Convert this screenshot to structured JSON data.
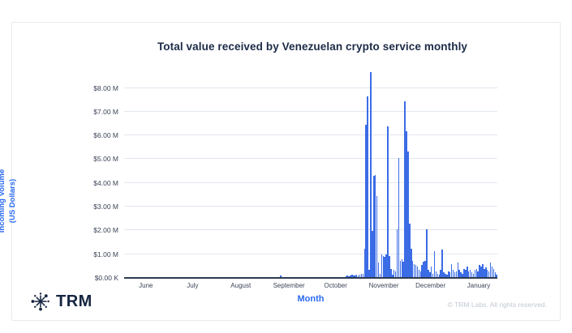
{
  "colors": {
    "bar": "#3B6CE6",
    "accent_blue": "#2A6AEF",
    "title": "#1C2B47",
    "tick_text": "#3C4458",
    "gridline": "#E2E6EE",
    "axis_line": "#2E3A50",
    "card_border": "#E8EAED",
    "muted_text": "#C2C8D2",
    "logo_navy": "#152440"
  },
  "footer": {
    "brand": "TRM",
    "brand_icon": "trm-starburst-icon",
    "copyright": "© TRM Labs. All rights reserved."
  },
  "chart_data": {
    "type": "bar",
    "title": "Total value received by Venezuelan crypto service monthly",
    "xlabel": "Month",
    "ylabel_line1": "Incoming Volume",
    "ylabel_line2": "(US Dollars)",
    "unit": "millions of US dollars per day",
    "grid": true,
    "legend": "none",
    "ylim": [
      0,
      8.77
    ],
    "yticks": [
      {
        "v": 0,
        "label": "$0.00 K"
      },
      {
        "v": 1,
        "label": "$1.00 M"
      },
      {
        "v": 2,
        "label": "$2.00 M"
      },
      {
        "v": 3,
        "label": "$3.00 M"
      },
      {
        "v": 4,
        "label": "$4.00 M"
      },
      {
        "v": 5,
        "label": "$5.00 M"
      },
      {
        "v": 6,
        "label": "$6.00 M"
      },
      {
        "v": 7,
        "label": "$7.00 M"
      },
      {
        "v": 8,
        "label": "$8.00 M"
      }
    ],
    "months": [
      {
        "label": "June",
        "start_day": 0
      },
      {
        "label": "July",
        "start_day": 30
      },
      {
        "label": "August",
        "start_day": 61
      },
      {
        "label": "September",
        "start_day": 92
      },
      {
        "label": "October",
        "start_day": 122
      },
      {
        "label": "November",
        "start_day": 153
      },
      {
        "label": "December",
        "start_day": 183
      },
      {
        "label": "January",
        "start_day": 214
      }
    ],
    "total_days": 240,
    "peak_value": 8.65,
    "values": [
      0,
      0,
      0,
      0,
      0,
      0,
      0,
      0,
      0,
      0,
      0,
      0,
      0,
      0,
      0,
      0,
      0,
      0,
      0,
      0,
      0,
      0,
      0,
      0,
      0,
      0,
      0,
      0,
      0,
      0,
      0,
      0,
      0,
      0,
      0,
      0,
      0,
      0,
      0,
      0,
      0,
      0,
      0,
      0,
      0,
      0,
      0,
      0,
      0,
      0,
      0,
      0,
      0,
      0,
      0,
      0,
      0,
      0,
      0,
      0,
      0,
      0,
      0,
      0,
      0,
      0,
      0,
      0,
      0,
      0,
      0,
      0,
      0,
      0,
      0,
      0,
      0,
      0,
      0,
      0,
      0,
      0,
      0,
      0,
      0,
      0,
      0,
      0,
      0,
      0,
      0,
      0,
      0,
      0,
      0,
      0,
      0,
      0,
      0,
      0,
      0.08,
      0,
      0,
      0,
      0,
      0,
      0,
      0,
      0,
      0,
      0,
      0,
      0,
      0,
      0,
      0,
      0,
      0,
      0,
      0,
      0,
      0,
      0,
      0,
      0,
      0,
      0,
      0,
      0,
      0,
      0,
      0,
      0,
      0,
      0,
      0,
      0,
      0,
      0,
      0,
      0,
      0,
      0.05,
      0.07,
      0.04,
      0.06,
      0.09,
      0.06,
      0.08,
      0.1,
      0.07,
      0.1,
      0.12,
      0.15,
      1.2,
      6.4,
      7.6,
      0.3,
      8.65,
      1.95,
      4.25,
      4.3,
      3.4,
      0.6,
      0.15,
      0.95,
      0.9,
      0.85,
      0.95,
      6.35,
      0.9,
      0.35,
      0.1,
      0.3,
      0.25,
      2.0,
      5.0,
      0.7,
      0.75,
      0.65,
      7.4,
      6.15,
      5.3,
      2.25,
      1.2,
      0.7,
      0.55,
      0.5,
      0.45,
      0.3,
      0.25,
      0.5,
      0.65,
      0.7,
      2.0,
      0.3,
      0.2,
      0.45,
      0.15,
      1.1,
      0.25,
      0.15,
      0.1,
      0.3,
      1.15,
      0.2,
      0.15,
      0.1,
      0.25,
      0.2,
      0.55,
      0.3,
      0.2,
      0.25,
      0.6,
      0.3,
      0.2,
      0.15,
      0.35,
      0.3,
      0.45,
      0.25,
      0.3,
      0.2,
      0.15,
      0.3,
      0.35,
      0.25,
      0.5,
      0.45,
      0.55,
      0.35,
      0.4,
      0.3,
      0.25,
      0.6,
      0.45,
      0.35,
      0.2,
      0.1
    ]
  }
}
